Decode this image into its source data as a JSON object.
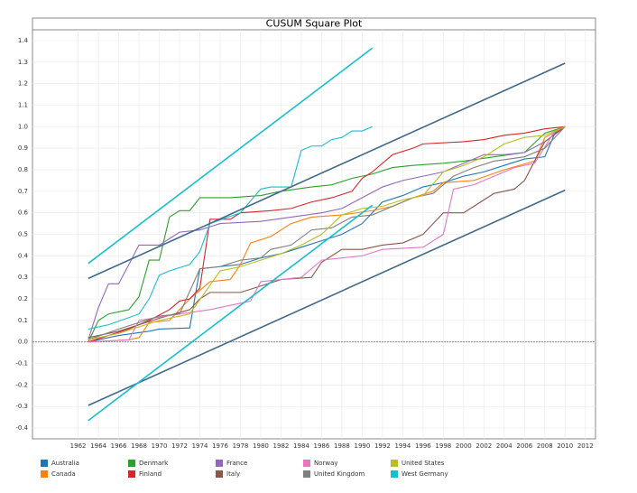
{
  "chart_data": {
    "type": "line",
    "title": "CUSUM Square Plot",
    "xlim": [
      1957.5,
      2013
    ],
    "ylim": [
      -0.45,
      1.45
    ],
    "xticks": [
      1962,
      1964,
      1966,
      1968,
      1970,
      1972,
      1974,
      1976,
      1978,
      1980,
      1982,
      1984,
      1986,
      1988,
      1990,
      1992,
      1994,
      1996,
      1998,
      2000,
      2002,
      2004,
      2006,
      2008,
      2010,
      2012
    ],
    "yticks": [
      -0.4,
      -0.3,
      -0.2,
      -0.1,
      {
        "value": 0,
        "label": "0.0"
      },
      0.1,
      0.2,
      0.3,
      0.4,
      0.5,
      0.6,
      0.7,
      0.8,
      0.9,
      {
        "value": 1,
        "label": "1.0"
      },
      1.1,
      1.2,
      1.3,
      1.4
    ],
    "grid": true,
    "reference_line": 0,
    "legend": "bottom",
    "series": [
      {
        "name": "Australia",
        "color": "#1f77b4",
        "x": [
          1963,
          1966,
          1969,
          1970,
          1973,
          1974,
          1976,
          1978,
          1980,
          1982,
          1984,
          1986,
          1988,
          1990,
          1991,
          1992,
          1994,
          1996,
          1998,
          2000,
          2002,
          2004,
          2006,
          2008,
          2009,
          2010
        ],
        "values": [
          0,
          0.03,
          0.05,
          0.06,
          0.065,
          0.34,
          0.35,
          0.36,
          0.39,
          0.41,
          0.44,
          0.47,
          0.5,
          0.55,
          0.6,
          0.65,
          0.68,
          0.72,
          0.74,
          0.77,
          0.79,
          0.82,
          0.85,
          0.86,
          0.97,
          1.0
        ]
      },
      {
        "name": "Canada",
        "color": "#ff7f0e",
        "x": [
          1963,
          1967,
          1968,
          1969,
          1971,
          1973,
          1975,
          1977,
          1978,
          1979,
          1981,
          1983,
          1985,
          1988,
          1991,
          1993,
          1995,
          1997,
          1998,
          2001,
          2004,
          2007,
          2008,
          2010
        ],
        "values": [
          0,
          0.01,
          0.02,
          0.09,
          0.1,
          0.2,
          0.28,
          0.29,
          0.36,
          0.46,
          0.49,
          0.55,
          0.58,
          0.59,
          0.61,
          0.63,
          0.67,
          0.7,
          0.74,
          0.75,
          0.8,
          0.84,
          0.95,
          1.0
        ]
      },
      {
        "name": "Denmark",
        "color": "#2ca02c",
        "x": [
          1963,
          1964,
          1965,
          1967,
          1968,
          1969,
          1970,
          1971,
          1972,
          1973,
          1974,
          1977,
          1980,
          1982,
          1985,
          1987,
          1989,
          1991,
          1993,
          1995,
          1998,
          2000,
          2003,
          2006,
          2008,
          2010
        ],
        "values": [
          0,
          0.1,
          0.13,
          0.15,
          0.21,
          0.38,
          0.38,
          0.58,
          0.61,
          0.61,
          0.67,
          0.67,
          0.68,
          0.7,
          0.72,
          0.73,
          0.76,
          0.78,
          0.81,
          0.82,
          0.83,
          0.84,
          0.86,
          0.88,
          0.97,
          1.0
        ]
      },
      {
        "name": "Finland",
        "color": "#d62728",
        "x": [
          1963,
          1965,
          1967,
          1969,
          1971,
          1972,
          1973,
          1974,
          1975,
          1977,
          1978,
          1981,
          1983,
          1985,
          1987,
          1989,
          1990,
          1991,
          1993,
          1995,
          1996,
          2000,
          2002,
          2004,
          2006,
          2008,
          2010
        ],
        "values": [
          0,
          0.03,
          0.06,
          0.1,
          0.15,
          0.19,
          0.2,
          0.25,
          0.57,
          0.57,
          0.6,
          0.61,
          0.62,
          0.65,
          0.67,
          0.7,
          0.76,
          0.79,
          0.87,
          0.9,
          0.92,
          0.93,
          0.94,
          0.96,
          0.97,
          0.99,
          1.0
        ]
      },
      {
        "name": "France",
        "color": "#9467bd",
        "x": [
          1963,
          1964,
          1965,
          1966,
          1968,
          1970,
          1972,
          1974,
          1976,
          1980,
          1983,
          1986,
          1988,
          1990,
          1992,
          1994,
          1996,
          1998,
          2000,
          2002,
          2004,
          2006,
          2008,
          2010
        ],
        "values": [
          0.01,
          0.16,
          0.27,
          0.27,
          0.45,
          0.45,
          0.51,
          0.52,
          0.55,
          0.56,
          0.58,
          0.6,
          0.62,
          0.67,
          0.72,
          0.75,
          0.77,
          0.79,
          0.83,
          0.87,
          0.87,
          0.88,
          0.93,
          1.0
        ]
      },
      {
        "name": "Italy",
        "color": "#8c564b",
        "x": [
          1963,
          1966,
          1970,
          1973,
          1974,
          1975,
          1978,
          1980,
          1982,
          1985,
          1986,
          1988,
          1990,
          1992,
          1994,
          1996,
          1997,
          1998,
          2000,
          2002,
          2003,
          2005,
          2006,
          2007,
          2008,
          2010
        ],
        "values": [
          0.02,
          0.05,
          0.11,
          0.15,
          0.2,
          0.23,
          0.23,
          0.26,
          0.29,
          0.3,
          0.37,
          0.43,
          0.43,
          0.45,
          0.46,
          0.5,
          0.55,
          0.6,
          0.6,
          0.66,
          0.69,
          0.71,
          0.75,
          0.84,
          0.93,
          1.0
        ]
      },
      {
        "name": "Norway",
        "color": "#e377c2",
        "x": [
          1963,
          1967,
          1968,
          1972,
          1975,
          1977,
          1979,
          1980,
          1982,
          1984,
          1986,
          1988,
          1990,
          1992,
          1996,
          1998,
          1999,
          2001,
          2003,
          2005,
          2007,
          2009,
          2010
        ],
        "values": [
          0,
          0.01,
          0.1,
          0.13,
          0.15,
          0.17,
          0.19,
          0.28,
          0.29,
          0.3,
          0.38,
          0.39,
          0.4,
          0.43,
          0.44,
          0.5,
          0.71,
          0.73,
          0.77,
          0.81,
          0.83,
          0.98,
          1.0
        ]
      },
      {
        "name": "United Kingdom",
        "color": "#7f7f7f",
        "x": [
          1963,
          1966,
          1970,
          1972,
          1974,
          1976,
          1978,
          1980,
          1981,
          1983,
          1985,
          1987,
          1989,
          1991,
          1993,
          1995,
          1997,
          1999,
          2001,
          2003,
          2006,
          2008,
          2010
        ],
        "values": [
          0.01,
          0.06,
          0.12,
          0.13,
          0.34,
          0.35,
          0.38,
          0.39,
          0.43,
          0.45,
          0.52,
          0.53,
          0.58,
          0.59,
          0.63,
          0.67,
          0.69,
          0.77,
          0.81,
          0.84,
          0.86,
          0.9,
          1.0
        ]
      },
      {
        "name": "United States",
        "color": "#bcbd22",
        "x": [
          1963,
          1966,
          1970,
          1973,
          1976,
          1978,
          1980,
          1982,
          1984,
          1986,
          1988,
          1990,
          1992,
          1994,
          1996,
          1998,
          2000,
          2002,
          2004,
          2006,
          2008,
          2010
        ],
        "values": [
          0.01,
          0.04,
          0.1,
          0.13,
          0.33,
          0.35,
          0.38,
          0.41,
          0.45,
          0.5,
          0.59,
          0.62,
          0.63,
          0.66,
          0.68,
          0.79,
          0.82,
          0.86,
          0.92,
          0.95,
          0.96,
          1.0
        ]
      },
      {
        "name": "West Germany",
        "color": "#17becf",
        "x": [
          1963,
          1965,
          1968,
          1969,
          1970,
          1971,
          1973,
          1974,
          1975,
          1978,
          1980,
          1981,
          1983,
          1984,
          1985,
          1986,
          1987,
          1988,
          1989,
          1990,
          1991
        ],
        "values": [
          0.06,
          0.08,
          0.13,
          0.2,
          0.31,
          0.33,
          0.36,
          0.42,
          0.55,
          0.6,
          0.71,
          0.72,
          0.72,
          0.89,
          0.91,
          0.91,
          0.94,
          0.95,
          0.98,
          0.98,
          1.0
        ]
      },
      {
        "color": "#41698a",
        "x": [
          1963,
          2010
        ],
        "values": [
          0.295,
          1.295
        ]
      },
      {
        "color": "#41698a",
        "x": [
          1963,
          2010
        ],
        "values": [
          -0.295,
          0.705
        ]
      },
      {
        "color": "#17becf",
        "x": [
          1963,
          1991
        ],
        "values": [
          0.365,
          1.365
        ]
      },
      {
        "color": "#17becf",
        "x": [
          1963,
          1991
        ],
        "values": [
          -0.365,
          0.635
        ]
      }
    ]
  }
}
